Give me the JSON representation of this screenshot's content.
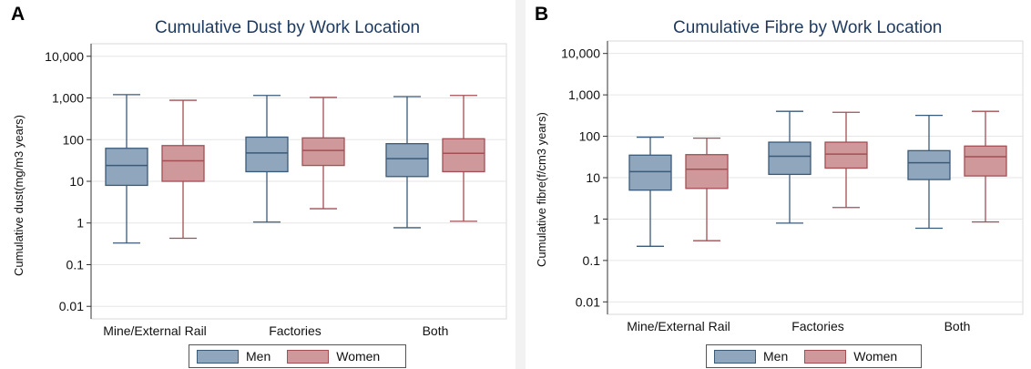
{
  "colors": {
    "men_fill": "#8fa6bd",
    "men_line": "#3b5a78",
    "women_fill": "#cf989b",
    "women_line": "#a24f55",
    "title": "#1e3a5f",
    "grid": "#e6e6e6"
  },
  "legend": {
    "men": "Men",
    "women": "Women"
  },
  "chart_data": [
    {
      "panel": "A",
      "type": "box",
      "title": "Cumulative Dust by Work Location",
      "ylabel": "Cumulative dust(mg/m3 years)",
      "yscale": "log",
      "ylim": [
        0.005,
        20000
      ],
      "yticks": [
        0.01,
        0.1,
        1,
        10,
        100,
        1000,
        10000
      ],
      "ytick_labels": [
        "0.01",
        "0.1",
        "1",
        "10",
        "100",
        "1,000",
        "10,000"
      ],
      "grid": true,
      "legend_position": "bottom",
      "categories": [
        "Mine/External Rail",
        "Factories",
        "Both"
      ],
      "series": [
        {
          "name": "Men",
          "boxes": [
            {
              "lower_whisker": 0.33,
              "q1": 8,
              "median": 24,
              "q3": 62,
              "upper_whisker": 1200
            },
            {
              "lower_whisker": 1.05,
              "q1": 17,
              "median": 48,
              "q3": 115,
              "upper_whisker": 1150
            },
            {
              "lower_whisker": 0.77,
              "q1": 13,
              "median": 35,
              "q3": 80,
              "upper_whisker": 1080
            }
          ]
        },
        {
          "name": "Women",
          "boxes": [
            {
              "lower_whisker": 0.43,
              "q1": 10,
              "median": 31,
              "q3": 72,
              "upper_whisker": 880
            },
            {
              "lower_whisker": 2.2,
              "q1": 24,
              "median": 55,
              "q3": 110,
              "upper_whisker": 1030
            },
            {
              "lower_whisker": 1.1,
              "q1": 17,
              "median": 47,
              "q3": 105,
              "upper_whisker": 1150
            }
          ]
        }
      ]
    },
    {
      "panel": "B",
      "type": "box",
      "title": "Cumulative Fibre by Work Location",
      "ylabel": "Cumulative fibre(f/cm3 years)",
      "yscale": "log",
      "ylim": [
        0.005,
        20000
      ],
      "yticks": [
        0.01,
        0.1,
        1,
        10,
        100,
        1000,
        10000
      ],
      "ytick_labels": [
        "0.01",
        "0.1",
        "1",
        "10",
        "100",
        "1,000",
        "10,000"
      ],
      "grid": true,
      "legend_position": "bottom",
      "categories": [
        "Mine/External Rail",
        "Factories",
        "Both"
      ],
      "series": [
        {
          "name": "Men",
          "boxes": [
            {
              "lower_whisker": 0.22,
              "q1": 5,
              "median": 14,
              "q3": 35,
              "upper_whisker": 95
            },
            {
              "lower_whisker": 0.8,
              "q1": 12,
              "median": 33,
              "q3": 72,
              "upper_whisker": 400
            },
            {
              "lower_whisker": 0.6,
              "q1": 9,
              "median": 23,
              "q3": 45,
              "upper_whisker": 320
            }
          ]
        },
        {
          "name": "Women",
          "boxes": [
            {
              "lower_whisker": 0.3,
              "q1": 5.5,
              "median": 16,
              "q3": 36,
              "upper_whisker": 90
            },
            {
              "lower_whisker": 1.9,
              "q1": 17,
              "median": 37,
              "q3": 72,
              "upper_whisker": 380
            },
            {
              "lower_whisker": 0.85,
              "q1": 11,
              "median": 32,
              "q3": 58,
              "upper_whisker": 400
            }
          ]
        }
      ]
    }
  ]
}
